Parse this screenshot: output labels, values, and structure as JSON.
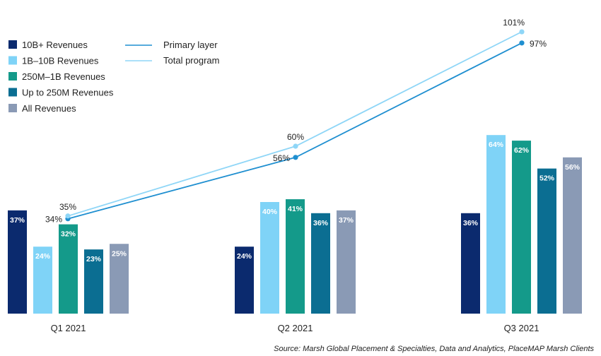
{
  "chart_data": {
    "type": "bar",
    "categories": [
      "Q1 2021",
      "Q2 2021",
      "Q3 2021"
    ],
    "series": [
      {
        "name": "10B+ Revenues",
        "values": [
          37,
          24,
          36
        ],
        "color": "#0b2a6e"
      },
      {
        "name": "1B–10B Revenues",
        "values": [
          24,
          40,
          64
        ],
        "color": "#7fd3f7"
      },
      {
        "name": "250M–1B Revenues",
        "values": [
          32,
          41,
          62
        ],
        "color": "#149a8a"
      },
      {
        "name": "Up to 250M Revenues",
        "values": [
          23,
          36,
          52
        ],
        "color": "#0b6e92"
      },
      {
        "name": "All Revenues",
        "values": [
          25,
          37,
          56
        ],
        "color": "#8a9ab5"
      }
    ],
    "lines": [
      {
        "name": "Primary layer",
        "values": [
          34,
          56,
          97
        ],
        "color": "#1f8fd0"
      },
      {
        "name": "Total program",
        "values": [
          35,
          60,
          101
        ],
        "color": "#8fd6f7"
      }
    ],
    "ylim": [
      0,
      101
    ],
    "value_suffix": "%",
    "legend_position": "top-left",
    "source": "Source: Marsh Global Placement & Specialties, Data and Analytics, PlaceMAP Marsh Clients"
  }
}
